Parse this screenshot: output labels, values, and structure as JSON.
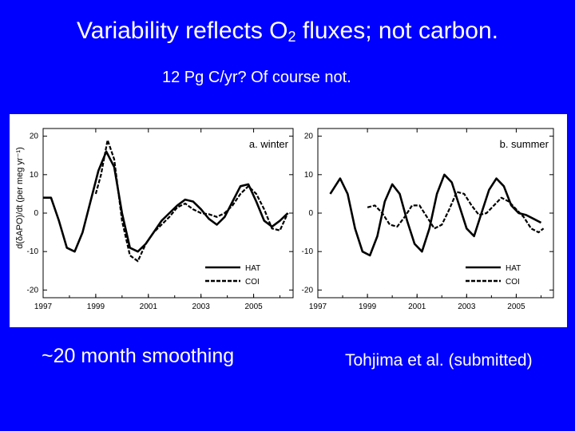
{
  "slide": {
    "title_pre": "Variability reflects O",
    "title_sub": "2",
    "title_post": " fluxes; not carbon.",
    "subtitle": "12 Pg C/yr?  Of course not.",
    "caption_left": "~20 month smoothing",
    "caption_right": "Tohjima et al. (submitted)"
  },
  "chart_data": [
    {
      "type": "line",
      "panel_label": "a. winter",
      "ylabel": "d(δAPO)/dt (per meg yr⁻¹)",
      "xlabel": "",
      "xlim": [
        1997,
        2006.5
      ],
      "ylim": [
        -22,
        22
      ],
      "xticks": [
        1997,
        1999,
        2001,
        2003,
        2005
      ],
      "yticks": [
        20,
        10,
        0,
        -10,
        -20
      ],
      "legend_position": "bottom-right",
      "series": [
        {
          "name": "HAT",
          "style": "solid",
          "points": [
            [
              1997.0,
              4
            ],
            [
              1997.3,
              4
            ],
            [
              1997.6,
              -2
            ],
            [
              1997.9,
              -9
            ],
            [
              1998.2,
              -10
            ],
            [
              1998.5,
              -5
            ],
            [
              1998.8,
              3
            ],
            [
              1999.1,
              11
            ],
            [
              1999.4,
              16
            ],
            [
              1999.7,
              12
            ],
            [
              2000.0,
              0
            ],
            [
              2000.3,
              -9
            ],
            [
              2000.6,
              -10
            ],
            [
              2000.9,
              -8
            ],
            [
              2001.2,
              -5
            ],
            [
              2001.5,
              -2
            ],
            [
              2001.8,
              0
            ],
            [
              2002.1,
              2
            ],
            [
              2002.4,
              3.5
            ],
            [
              2002.7,
              3
            ],
            [
              2003.0,
              1
            ],
            [
              2003.3,
              -1.5
            ],
            [
              2003.6,
              -3
            ],
            [
              2003.9,
              -1
            ],
            [
              2004.2,
              3
            ],
            [
              2004.5,
              7
            ],
            [
              2004.8,
              7.5
            ],
            [
              2005.1,
              3
            ],
            [
              2005.4,
              -2
            ],
            [
              2005.7,
              -3.5
            ],
            [
              2006.0,
              -2
            ],
            [
              2006.3,
              0
            ]
          ]
        },
        {
          "name": "COI",
          "style": "dashed",
          "points": [
            [
              1999.0,
              5
            ],
            [
              1999.2,
              10
            ],
            [
              1999.45,
              19
            ],
            [
              1999.7,
              14
            ],
            [
              2000.0,
              -2
            ],
            [
              2000.3,
              -11
            ],
            [
              2000.6,
              -12.5
            ],
            [
              2000.9,
              -8
            ],
            [
              2001.2,
              -5
            ],
            [
              2001.5,
              -3
            ],
            [
              2001.8,
              -1
            ],
            [
              2002.1,
              1.5
            ],
            [
              2002.4,
              2.5
            ],
            [
              2002.7,
              1
            ],
            [
              2003.0,
              0
            ],
            [
              2003.3,
              -0.3
            ],
            [
              2003.6,
              -1
            ],
            [
              2003.9,
              0
            ],
            [
              2004.2,
              2
            ],
            [
              2004.5,
              5
            ],
            [
              2004.8,
              7
            ],
            [
              2005.1,
              5
            ],
            [
              2005.4,
              1
            ],
            [
              2005.7,
              -4
            ],
            [
              2006.0,
              -4.5
            ],
            [
              2006.3,
              0
            ]
          ]
        }
      ]
    },
    {
      "type": "line",
      "panel_label": "b. summer",
      "xlim": [
        1997,
        2006.5
      ],
      "ylim": [
        -22,
        22
      ],
      "xticks": [
        1997,
        1999,
        2001,
        2003,
        2005
      ],
      "yticks": [
        20,
        10,
        0,
        -10,
        -20
      ],
      "legend_position": "bottom-right",
      "series": [
        {
          "name": "HAT",
          "style": "solid",
          "points": [
            [
              1997.5,
              5
            ],
            [
              1997.9,
              9
            ],
            [
              1998.2,
              5
            ],
            [
              1998.5,
              -4
            ],
            [
              1998.8,
              -10
            ],
            [
              1999.1,
              -11
            ],
            [
              1999.4,
              -6
            ],
            [
              1999.7,
              3
            ],
            [
              2000.0,
              7.5
            ],
            [
              2000.3,
              5
            ],
            [
              2000.6,
              -2
            ],
            [
              2000.9,
              -8
            ],
            [
              2001.2,
              -10
            ],
            [
              2001.5,
              -4
            ],
            [
              2001.8,
              5
            ],
            [
              2002.1,
              10
            ],
            [
              2002.4,
              8
            ],
            [
              2002.7,
              2
            ],
            [
              2003.0,
              -4
            ],
            [
              2003.3,
              -6
            ],
            [
              2003.6,
              0
            ],
            [
              2003.9,
              6
            ],
            [
              2004.2,
              9
            ],
            [
              2004.5,
              7
            ],
            [
              2004.8,
              2
            ],
            [
              2005.1,
              0
            ],
            [
              2005.4,
              -0.5
            ],
            [
              2005.7,
              -1.5
            ],
            [
              2006.0,
              -2.5
            ]
          ]
        },
        {
          "name": "COI",
          "style": "dashed",
          "points": [
            [
              1999.0,
              1.5
            ],
            [
              1999.3,
              2
            ],
            [
              1999.6,
              0
            ],
            [
              1999.9,
              -3
            ],
            [
              2000.2,
              -3.5
            ],
            [
              2000.5,
              -1
            ],
            [
              2000.8,
              2
            ],
            [
              2001.1,
              2
            ],
            [
              2001.4,
              -1
            ],
            [
              2001.7,
              -4
            ],
            [
              2002.0,
              -3
            ],
            [
              2002.3,
              1
            ],
            [
              2002.6,
              5.5
            ],
            [
              2002.9,
              5
            ],
            [
              2003.2,
              2
            ],
            [
              2003.5,
              -0.5
            ],
            [
              2003.8,
              0
            ],
            [
              2004.1,
              2
            ],
            [
              2004.4,
              4
            ],
            [
              2004.7,
              3
            ],
            [
              2005.0,
              1
            ],
            [
              2005.3,
              -1
            ],
            [
              2005.6,
              -4
            ],
            [
              2005.9,
              -5
            ],
            [
              2006.1,
              -4
            ]
          ]
        }
      ]
    }
  ]
}
